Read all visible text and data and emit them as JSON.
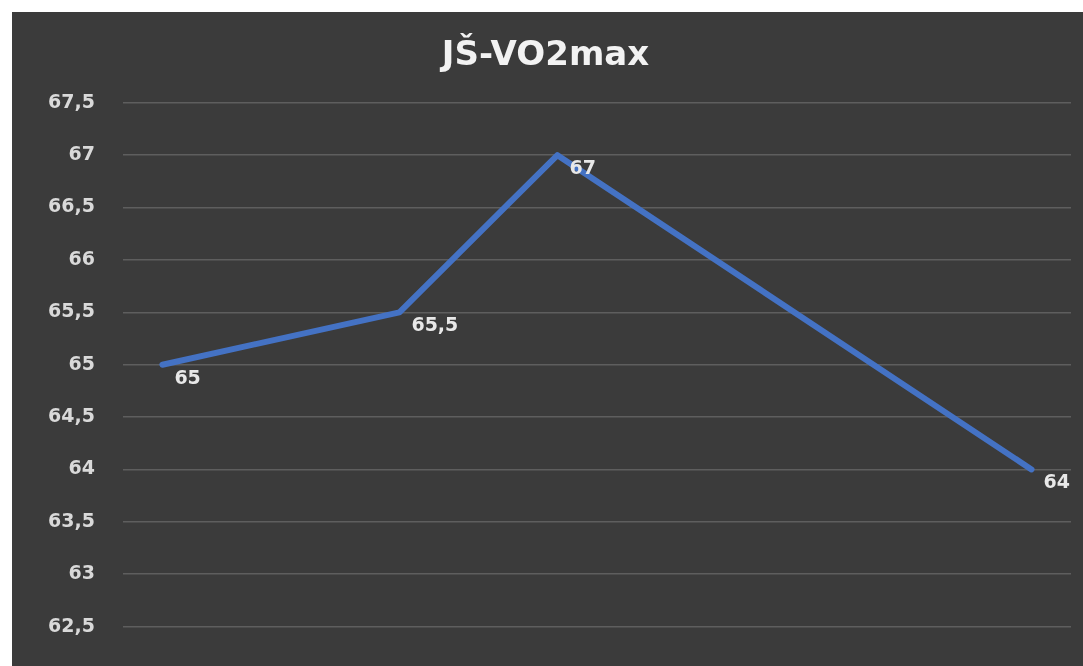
{
  "chart_data": {
    "type": "line",
    "title": "JŠ-VO2max",
    "categories": [
      null,
      null,
      null,
      null,
      null,
      null,
      null,
      null,
      null,
      null,
      null,
      null
    ],
    "series": [
      {
        "color": "#4472c4",
        "values": [
          65,
          null,
          null,
          65.5,
          null,
          67,
          null,
          null,
          null,
          null,
          null,
          64
        ],
        "value_labels": [
          "65",
          null,
          null,
          "65,5",
          null,
          "67",
          null,
          null,
          null,
          null,
          null,
          "64"
        ]
      }
    ],
    "ylim": [
      62.5,
      67.5
    ],
    "yticks": [
      {
        "value": 62.5,
        "label": "62,5"
      },
      63,
      {
        "value": 63.5,
        "label": "63,5"
      },
      64,
      {
        "value": 64.5,
        "label": "64,5"
      },
      65,
      {
        "value": 65.5,
        "label": "65,5"
      },
      66,
      {
        "value": 66.5,
        "label": "66,5"
      },
      67,
      {
        "value": 67.5,
        "label": "67,5"
      }
    ],
    "grid": "y",
    "legend": false,
    "marker": "none",
    "line_style": "solid",
    "tick_labels": "y"
  }
}
